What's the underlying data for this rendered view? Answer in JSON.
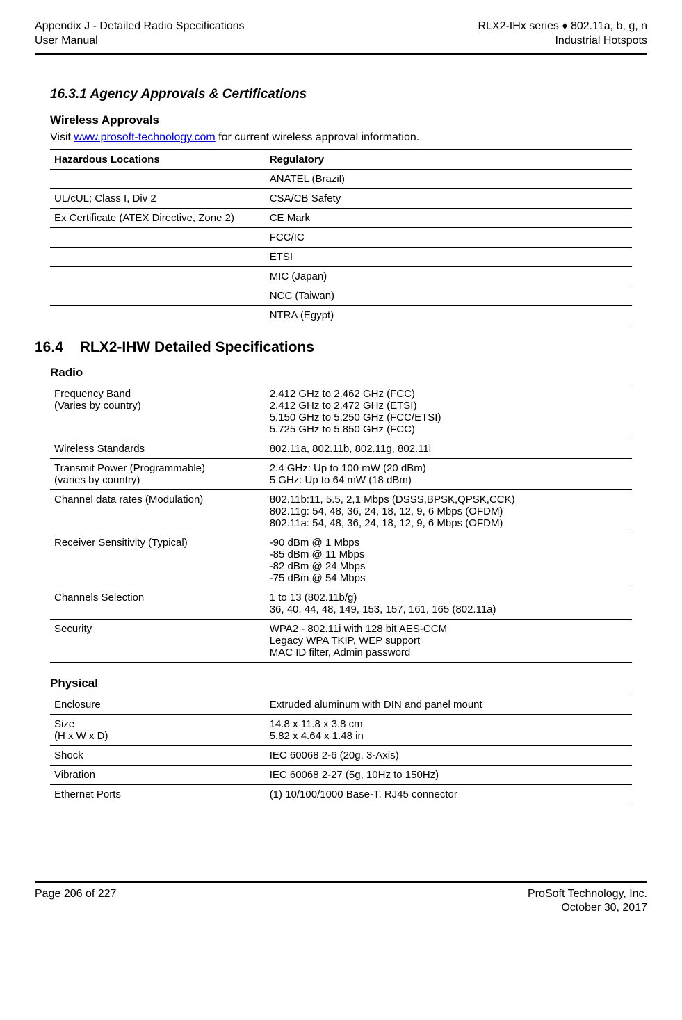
{
  "header": {
    "left_line1": "Appendix J - Detailed Radio Specifications",
    "left_line2": "User Manual",
    "right_line1": "RLX2-IHx series ♦ 802.11a, b, g, n",
    "right_line2": "Industrial Hotspots"
  },
  "section_1631_title": "16.3.1 Agency Approvals & Certifications",
  "wireless_approvals_head": "Wireless Approvals",
  "visit_prefix": "Visit ",
  "visit_link": "www.prosoft-technology.com",
  "visit_suffix": " for current wireless approval information.",
  "approvals_table": {
    "col_a": "Hazardous Locations",
    "col_b": "Regulatory",
    "rows": [
      {
        "a": "",
        "b": "ANATEL (Brazil)"
      },
      {
        "a": "UL/cUL; Class I, Div 2",
        "b": "CSA/CB Safety"
      },
      {
        "a": "Ex Certificate (ATEX Directive, Zone 2)",
        "b": "CE Mark"
      },
      {
        "a": "",
        "b": "FCC/IC"
      },
      {
        "a": "",
        "b": "ETSI"
      },
      {
        "a": "",
        "b": "MIC (Japan)"
      },
      {
        "a": "",
        "b": "NCC (Taiwan)"
      },
      {
        "a": "",
        "b": "NTRA (Egypt)"
      }
    ]
  },
  "section_164_num": "16.4",
  "section_164_title": "RLX2-IHW Detailed Specifications",
  "radio_head": "Radio",
  "radio_table": {
    "rows": [
      {
        "a": "Frequency Band\n(Varies by country)",
        "b": "2.412 GHz to 2.462 GHz (FCC)\n2.412 GHz to 2.472 GHz (ETSI)\n5.150 GHz to 5.250 GHz (FCC/ETSI)\n5.725 GHz to 5.850 GHz (FCC)"
      },
      {
        "a": "Wireless Standards",
        "b": "802.11a, 802.11b, 802.11g, 802.11i"
      },
      {
        "a": "Transmit Power (Programmable)\n(varies by country)",
        "b": "2.4 GHz: Up to 100 mW (20 dBm)\n5 GHz: Up to 64 mW (18 dBm)"
      },
      {
        "a": "Channel data rates (Modulation)",
        "b": "802.11b:11, 5.5, 2,1 Mbps (DSSS,BPSK,QPSK,CCK)\n802.11g: 54, 48, 36, 24, 18, 12, 9, 6 Mbps (OFDM)\n802.11a: 54, 48, 36, 24, 18, 12, 9, 6 Mbps (OFDM)"
      },
      {
        "a": "Receiver Sensitivity (Typical)",
        "b": "-90 dBm @ 1 Mbps\n-85 dBm @ 11 Mbps\n-82 dBm @ 24 Mbps\n-75 dBm @ 54 Mbps"
      },
      {
        "a": "Channels Selection",
        "b": "1 to 13 (802.11b/g)\n36, 40, 44, 48, 149, 153, 157, 161, 165 (802.11a)"
      },
      {
        "a": "Security",
        "b": "WPA2 - 802.11i with 128 bit AES-CCM\nLegacy WPA TKIP, WEP support\nMAC ID filter, Admin password"
      }
    ]
  },
  "physical_head": "Physical",
  "physical_table": {
    "rows": [
      {
        "a": "Enclosure",
        "b": "Extruded aluminum with DIN and panel mount"
      },
      {
        "a": "Size\n(H x W x D)",
        "b": "14.8 x 11.8 x 3.8 cm\n5.82 x 4.64 x 1.48 in"
      },
      {
        "a": "Shock",
        "b": "IEC 60068 2-6 (20g, 3-Axis)"
      },
      {
        "a": "Vibration",
        "b": "IEC 60068 2-27 (5g, 10Hz to 150Hz)"
      },
      {
        "a": "Ethernet Ports",
        "b": "(1) 10/100/1000 Base-T, RJ45 connector"
      }
    ]
  },
  "footer": {
    "left": "Page 206 of 227",
    "right_line1": "ProSoft Technology, Inc.",
    "right_line2": "October 30, 2017"
  }
}
